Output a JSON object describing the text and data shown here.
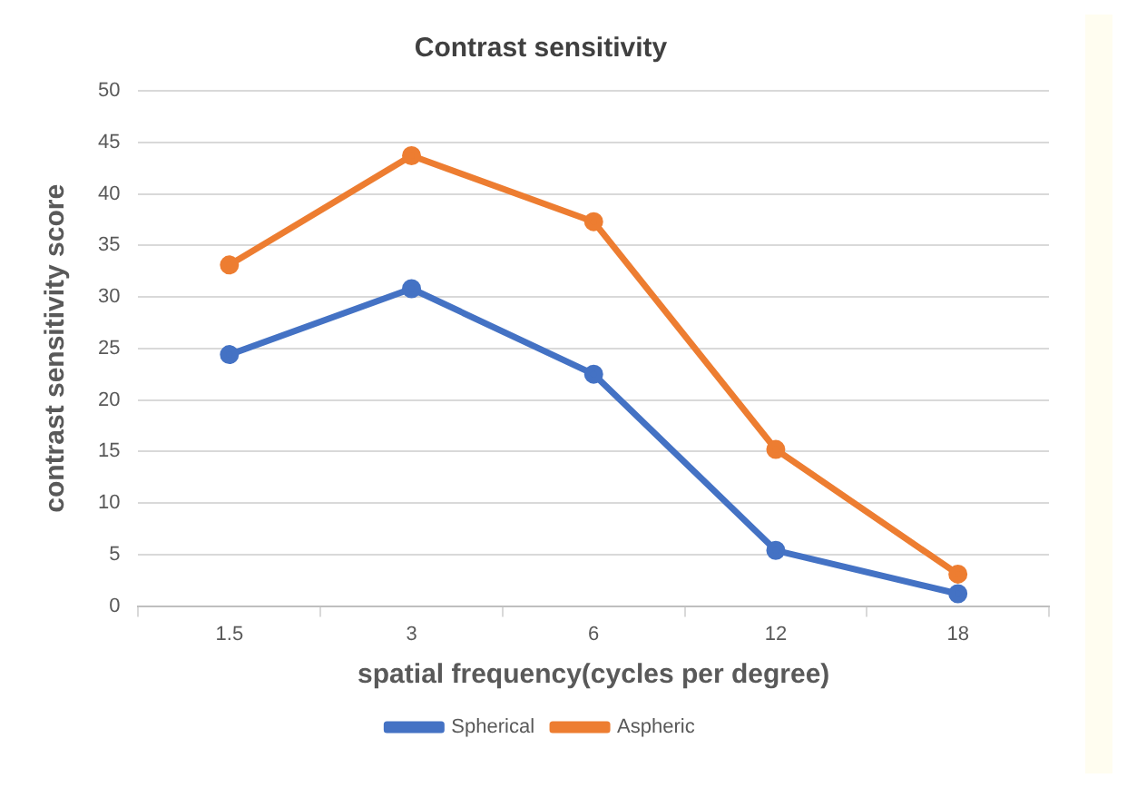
{
  "chart_data": {
    "type": "line",
    "title": "Contrast sensitivity",
    "xlabel": "spatial frequency(cycles per degree)",
    "ylabel": "contrast sensitivity score",
    "categories": [
      "1.5",
      "3",
      "6",
      "12",
      "18"
    ],
    "series": [
      {
        "name": "Spherical",
        "color": "#4472c4",
        "values": [
          24.4,
          30.8,
          22.5,
          5.4,
          1.2
        ]
      },
      {
        "name": "Aspheric",
        "color": "#ed7d31",
        "values": [
          33.1,
          43.7,
          37.3,
          15.2,
          3.1
        ]
      }
    ],
    "ylim": [
      0,
      50
    ],
    "yticks": [
      0,
      5,
      10,
      15,
      20,
      25,
      30,
      35,
      40,
      45,
      50
    ],
    "grid": "y",
    "legend": "bottom",
    "marker": "circle",
    "line_style": "solid"
  }
}
